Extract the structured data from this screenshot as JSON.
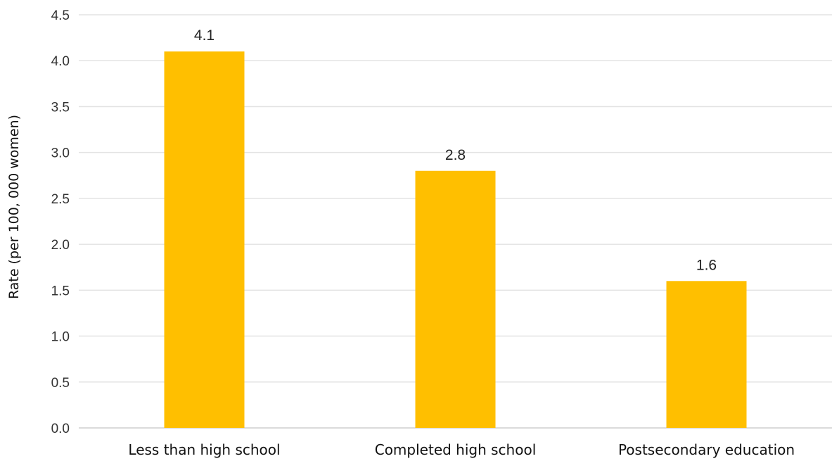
{
  "chart_data": {
    "type": "bar",
    "categories": [
      "Less than high school",
      "Completed high school",
      "Postsecondary education"
    ],
    "values": [
      4.1,
      2.8,
      1.6
    ],
    "data_labels": [
      "4.1",
      "2.8",
      "1.6"
    ],
    "title": "",
    "xlabel": "",
    "ylabel": "Rate (per 100, 000 women)",
    "ylim": [
      0,
      4.5
    ],
    "yticks": [
      "0.0",
      "0.5",
      "1.0",
      "1.5",
      "2.0",
      "2.5",
      "3.0",
      "3.5",
      "4.0",
      "4.5"
    ],
    "grid": true,
    "legend": "none",
    "colors": {
      "bar": "#FFBF00",
      "grid": "#E3E3E3"
    }
  }
}
